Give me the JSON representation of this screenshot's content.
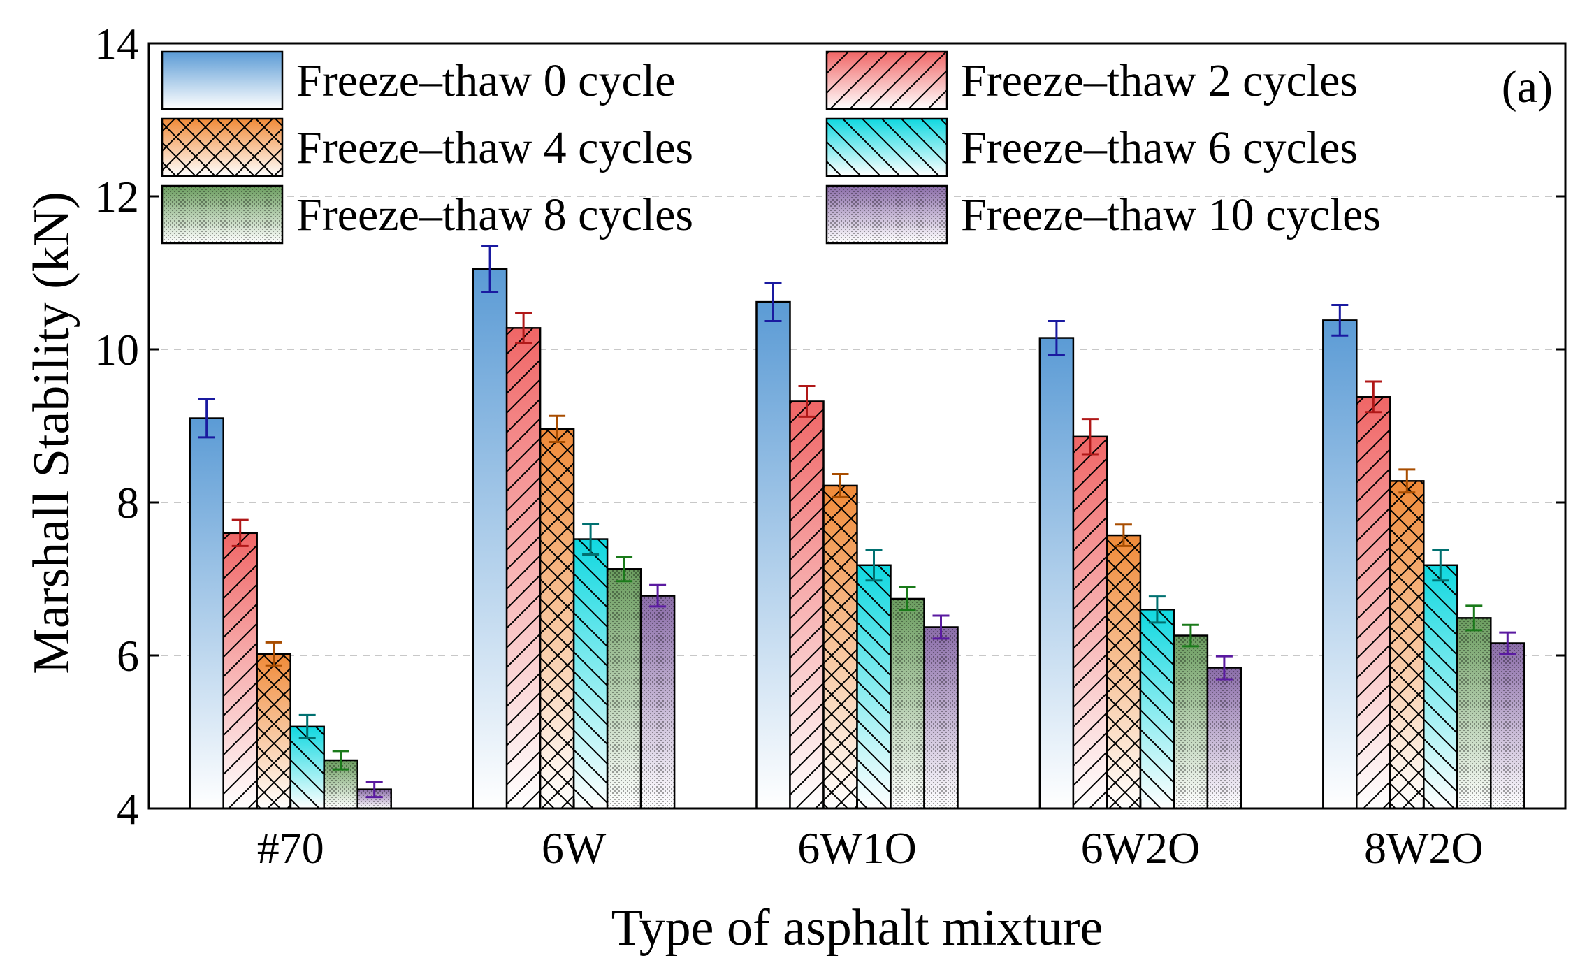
{
  "chart_data": {
    "type": "bar",
    "title": "",
    "panel_label": "(a)",
    "xlabel": "Type of asphalt mixture",
    "ylabel": "Marshall Stability (kN)",
    "ylim": [
      4,
      14
    ],
    "yticks": [
      4,
      6,
      8,
      10,
      12,
      14
    ],
    "grid": "horizontal dashed",
    "legend_position": "top",
    "categories": [
      "#70",
      "6W",
      "6W1O",
      "6W2O",
      "8W2O"
    ],
    "series": [
      {
        "name": "Freeze–thaw 0 cycle",
        "values": [
          9.1,
          11.05,
          10.62,
          10.15,
          10.38
        ],
        "errors": [
          0.25,
          0.3,
          0.25,
          0.22,
          0.2
        ],
        "color": "#5b9bd5",
        "stroke": "#1a1aa0",
        "pattern": "none"
      },
      {
        "name": "Freeze–thaw 2 cycles",
        "values": [
          7.6,
          10.28,
          9.32,
          8.86,
          9.38
        ],
        "errors": [
          0.17,
          0.2,
          0.2,
          0.23,
          0.2
        ],
        "color": "#f06666",
        "stroke": "#b01818",
        "pattern": "diag"
      },
      {
        "name": "Freeze–thaw 4 cycles",
        "values": [
          6.02,
          8.96,
          8.22,
          7.57,
          8.28
        ],
        "errors": [
          0.15,
          0.17,
          0.15,
          0.14,
          0.15
        ],
        "color": "#f08a38",
        "stroke": "#a84d00",
        "pattern": "cross"
      },
      {
        "name": "Freeze–thaw 6 cycles",
        "values": [
          5.07,
          7.52,
          7.18,
          6.6,
          7.18
        ],
        "errors": [
          0.15,
          0.2,
          0.2,
          0.17,
          0.2
        ],
        "color": "#10d8e0",
        "stroke": "#007070",
        "pattern": "backdiag"
      },
      {
        "name": "Freeze–thaw 8 cycles",
        "values": [
          4.63,
          7.13,
          6.74,
          6.26,
          6.49
        ],
        "errors": [
          0.12,
          0.16,
          0.15,
          0.14,
          0.16
        ],
        "color": "#6a9c5e",
        "stroke": "#1a7a1a",
        "pattern": "dots"
      },
      {
        "name": "Freeze–thaw 10 cycles",
        "values": [
          4.25,
          6.78,
          6.37,
          5.84,
          6.16
        ],
        "errors": [
          0.1,
          0.14,
          0.15,
          0.15,
          0.14
        ],
        "color": "#8a6ca8",
        "stroke": "#5a1aa0",
        "pattern": "dots"
      }
    ]
  }
}
